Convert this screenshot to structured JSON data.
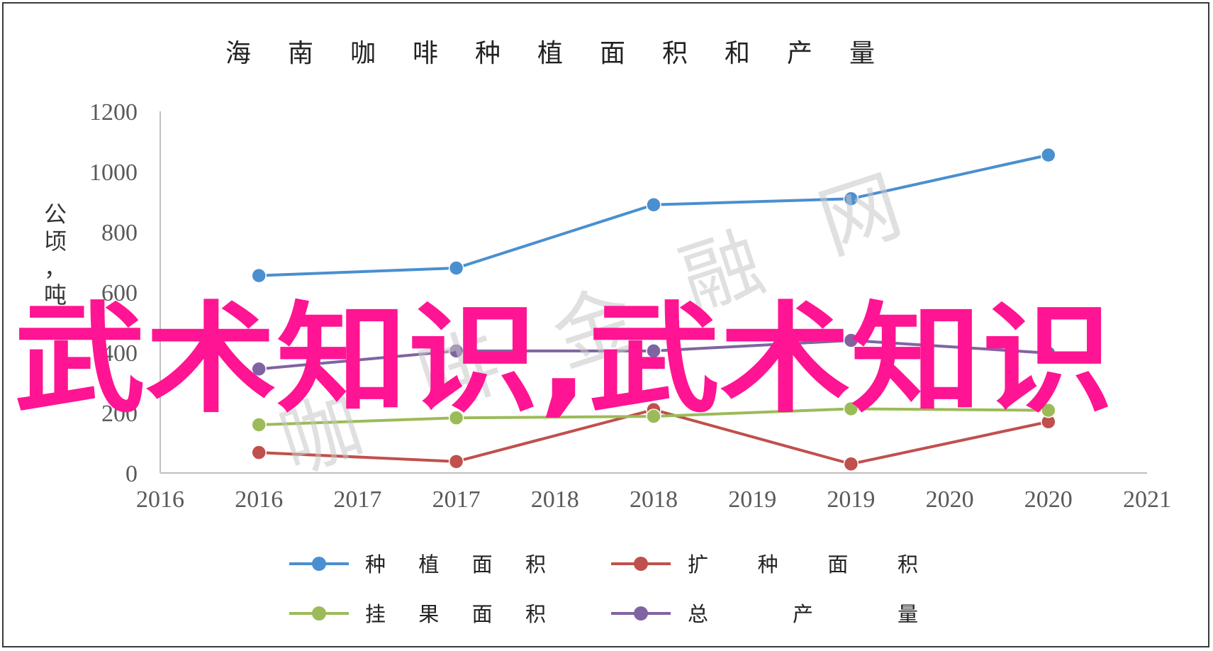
{
  "chart_data": {
    "type": "line",
    "title": "海南咖啡种植面积和产量",
    "ylabel": "公顷，吨",
    "ylim": [
      0,
      1200
    ],
    "yticks": [
      0,
      200,
      400,
      600,
      800,
      1000,
      1200
    ],
    "xticks": [
      "2016",
      "2016",
      "2017",
      "2017",
      "2018",
      "2018",
      "2019",
      "2019",
      "2020",
      "2020",
      "2021"
    ],
    "point_positions": [
      1,
      3,
      5,
      7,
      9
    ],
    "categories": [
      "2016",
      "2017",
      "2018",
      "2019",
      "2020"
    ],
    "legend_position": "bottom",
    "grid": false,
    "series": [
      {
        "name": "种植面积",
        "color": "#4a8fd0",
        "values": [
          655,
          680,
          890,
          910,
          1055
        ]
      },
      {
        "name": "扩种面积",
        "color": "#c0504d",
        "values": [
          68,
          38,
          210,
          30,
          170
        ]
      },
      {
        "name": "挂果面积",
        "color": "#9bbb59",
        "values": [
          160,
          183,
          188,
          213,
          208
        ]
      },
      {
        "name": "总产量",
        "color": "#8064a2",
        "values": [
          345,
          405,
          405,
          440,
          398
        ]
      }
    ]
  },
  "watermark": {
    "main_text": "武术知识,武术知识",
    "main_color": "#ff1493",
    "secondary_text": "咖啡金融网"
  }
}
